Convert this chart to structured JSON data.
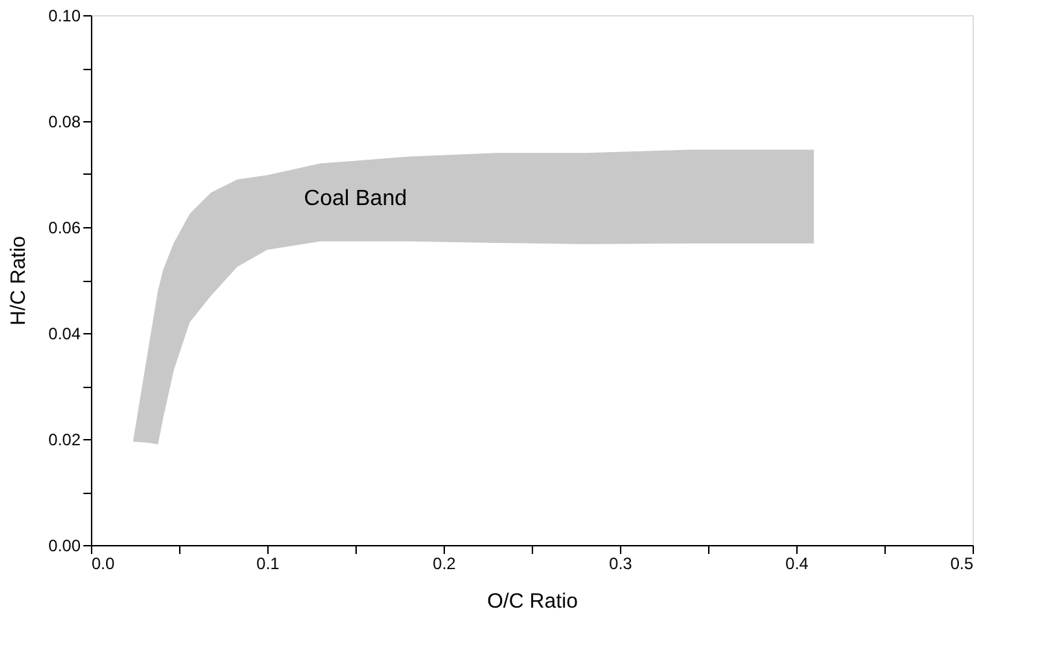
{
  "chart_data": {
    "type": "area",
    "xlabel": "O/C Ratio",
    "ylabel": "H/C Ratio",
    "xlim": [
      0,
      0.5
    ],
    "ylim": [
      0,
      0.1
    ],
    "xticks": [
      {
        "value": 0,
        "label": "0.0"
      },
      {
        "value": 0.05,
        "label": null
      },
      {
        "value": 0.1,
        "label": "0.1"
      },
      {
        "value": 0.15,
        "label": null
      },
      {
        "value": 0.2,
        "label": "0.2"
      },
      {
        "value": 0.25,
        "label": null
      },
      {
        "value": 0.3,
        "label": "0.3"
      },
      {
        "value": 0.35,
        "label": null
      },
      {
        "value": 0.4,
        "label": "0.4"
      },
      {
        "value": 0.45,
        "label": null
      },
      {
        "value": 0.5,
        "label": "0.5"
      }
    ],
    "yticks": [
      {
        "value": 0,
        "label": "0.00"
      },
      {
        "value": 0.01,
        "label": null
      },
      {
        "value": 0.02,
        "label": "0.02"
      },
      {
        "value": 0.03,
        "label": null
      },
      {
        "value": 0.04,
        "label": "0.04"
      },
      {
        "value": 0.05,
        "label": null
      },
      {
        "value": 0.06,
        "label": "0.06"
      },
      {
        "value": 0.07,
        "label": null
      },
      {
        "value": 0.08,
        "label": "0.08"
      },
      {
        "value": 0.09,
        "label": null
      },
      {
        "value": 0.1,
        "label": "0.10"
      }
    ],
    "grid": false,
    "series": [
      {
        "color": "#c8c8c8",
        "x": [
          0.024,
          0.033,
          0.038,
          0.041,
          0.047,
          0.056,
          0.068,
          0.083,
          0.1,
          0.13,
          0.18,
          0.23,
          0.28,
          0.34,
          0.41
        ],
        "values": [
          null,
          null,
          null,
          null,
          null,
          null,
          null,
          null,
          null,
          null,
          null,
          null,
          null,
          null,
          null
        ],
        "upper": [
          0.0198,
          0.038,
          0.048,
          0.052,
          0.057,
          0.0625,
          0.0665,
          0.069,
          0.0698,
          0.072,
          0.0733,
          0.074,
          0.074,
          0.0746,
          0.0746
        ],
        "lower": [
          0.0195,
          0.0193,
          0.019,
          0.024,
          0.033,
          0.042,
          0.047,
          0.0525,
          0.0557,
          0.0573,
          0.0573,
          0.057,
          0.0568,
          0.0569,
          0.0569
        ]
      }
    ],
    "annotations": [
      "Coal Band"
    ]
  }
}
